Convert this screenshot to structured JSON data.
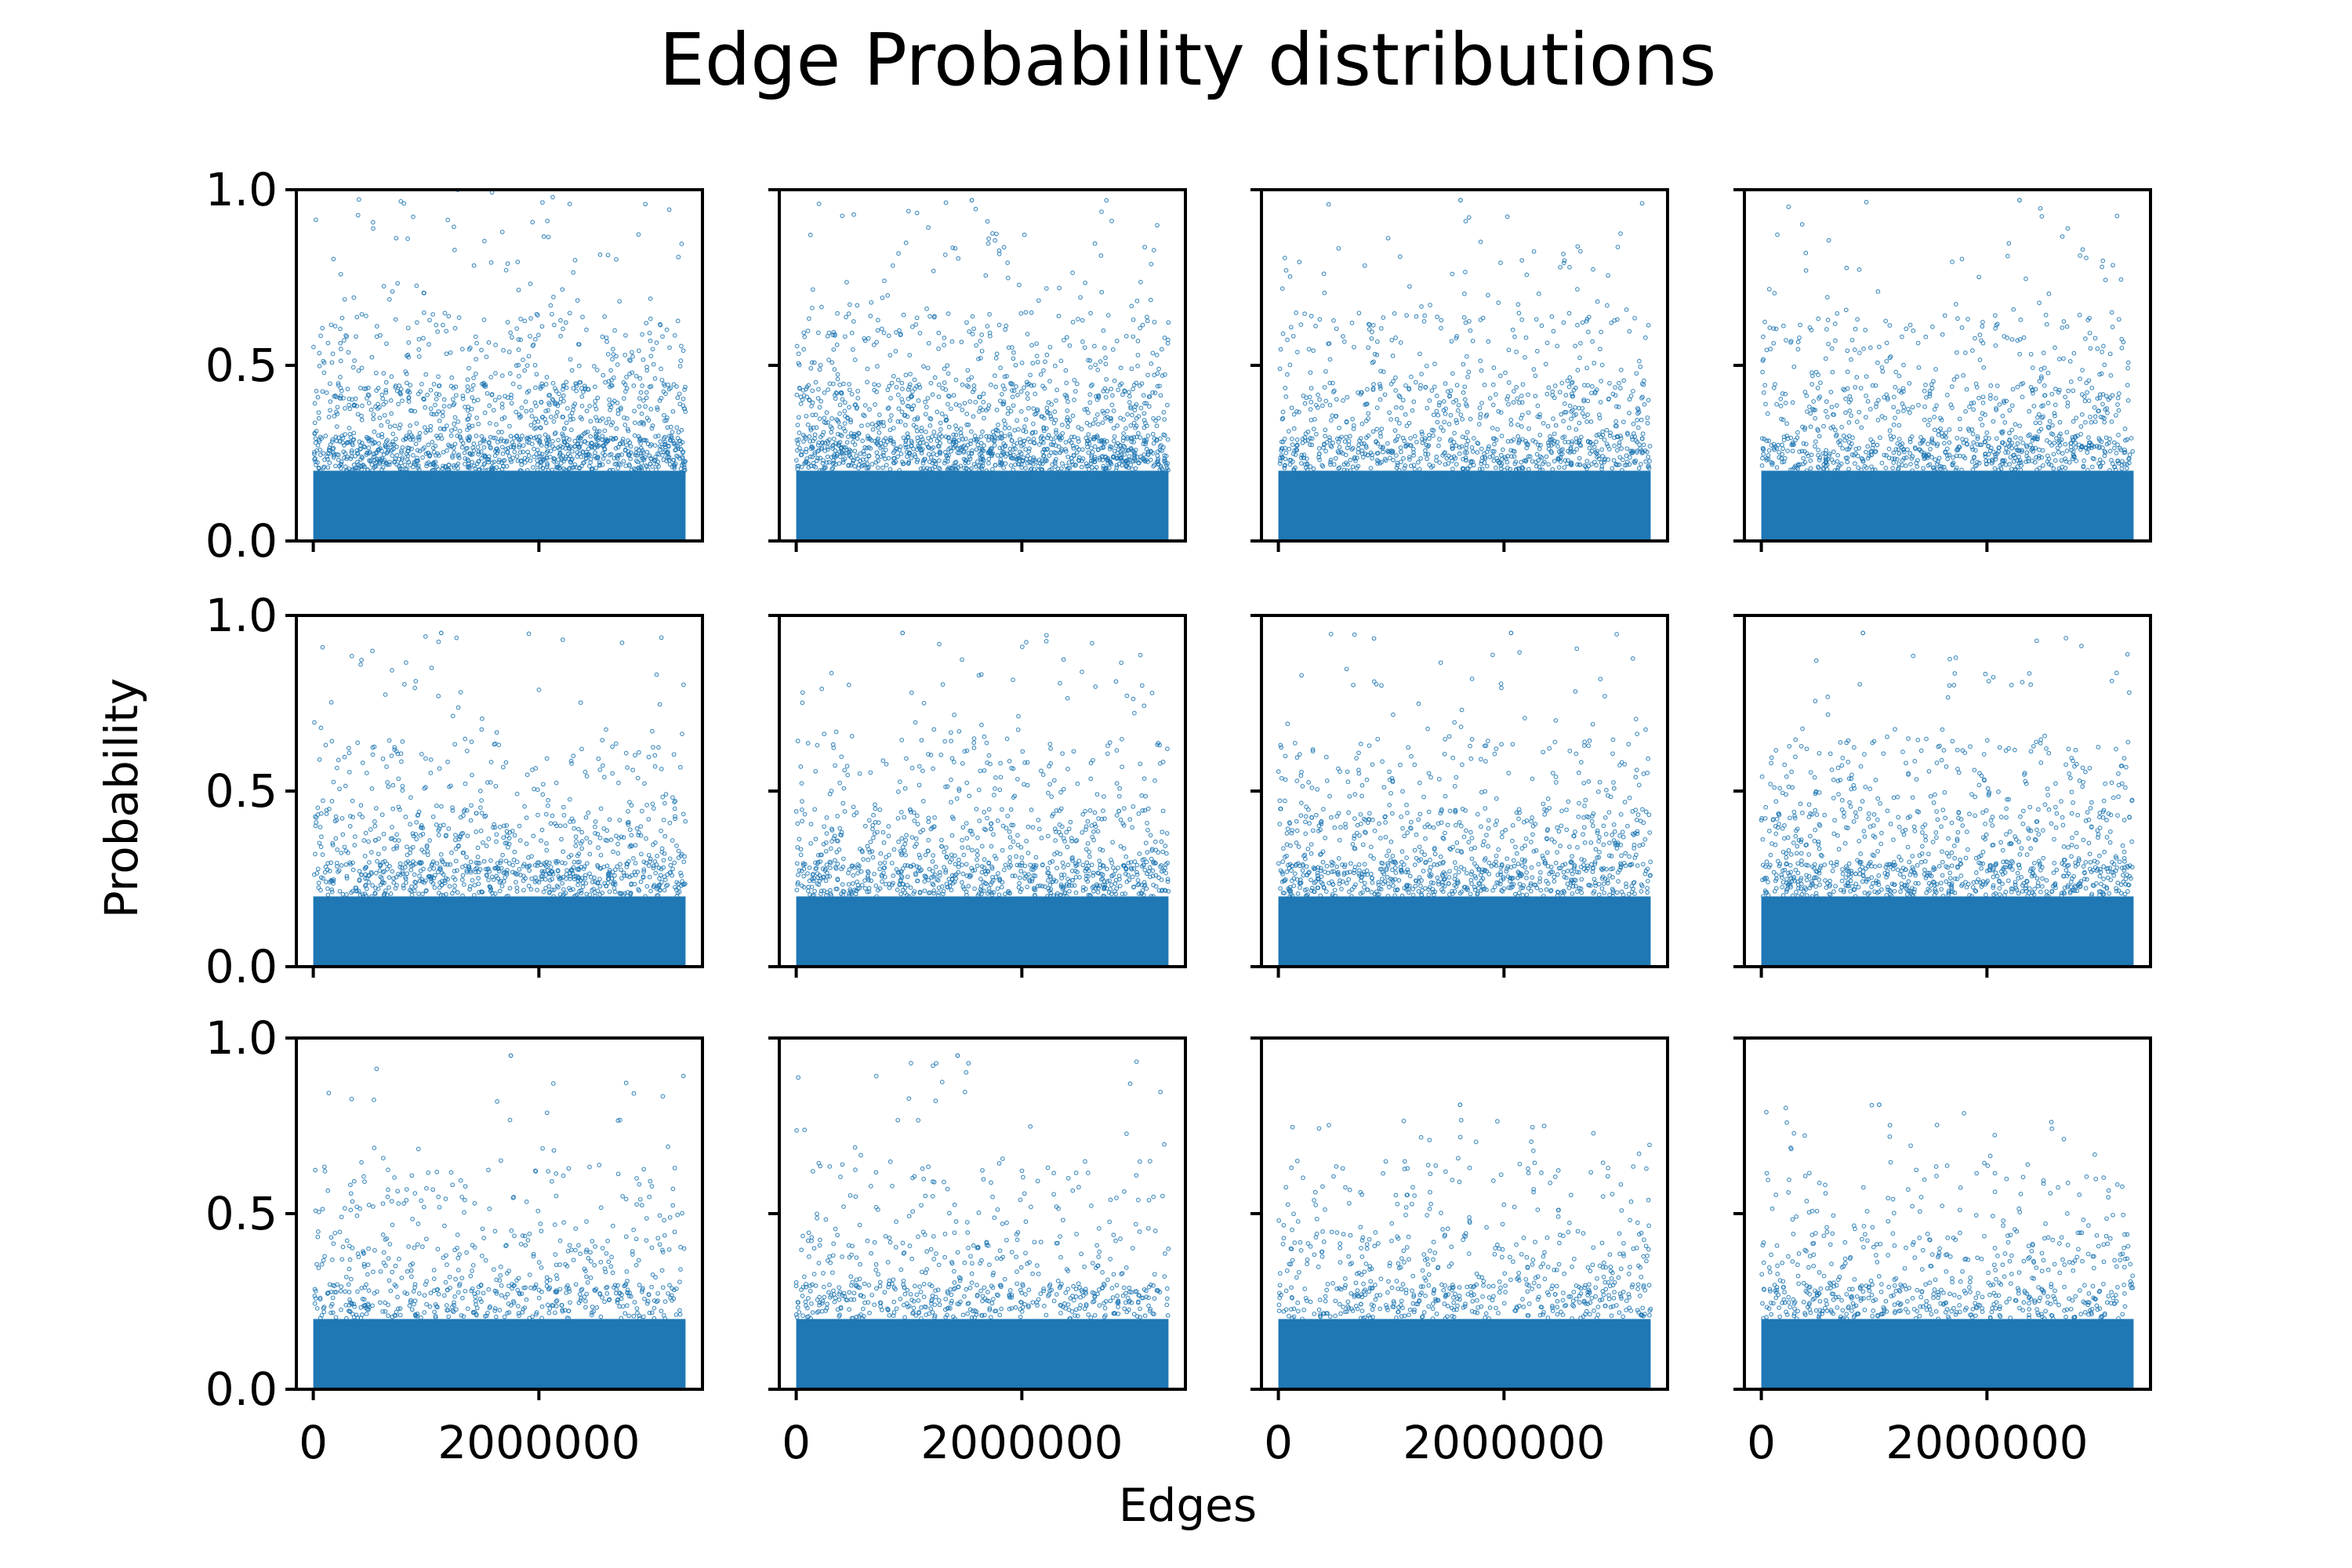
{
  "figure": {
    "title": "Edge Probability distributions",
    "xlabel": "Edges",
    "ylabel": "Probability"
  },
  "chart_data": {
    "type": "scatter",
    "grid": false,
    "layout": {
      "rows": 3,
      "cols": 4,
      "sharex": true,
      "sharey": true
    },
    "xlim": [
      -150000,
      3450000
    ],
    "ylim": [
      0.0,
      1.0
    ],
    "xticks": [
      0,
      2000000
    ],
    "xtick_labels": [
      "0",
      "2000000"
    ],
    "yticks": [
      0.0,
      0.5,
      1.0
    ],
    "ytick_labels": [
      "0.0",
      "0.5",
      "1.0"
    ],
    "n_edges": 3300000,
    "marker": {
      "style": "hollow-circle",
      "color": "#1f77b4"
    },
    "distribution": {
      "dense_band_max": 0.2,
      "scattered_range": [
        0.2,
        1.0
      ]
    },
    "panels": [
      {
        "row": 1,
        "col": 1,
        "max_probability": 1.0,
        "upper_spread": "heavy"
      },
      {
        "row": 1,
        "col": 2,
        "max_probability": 0.97,
        "upper_spread": "heavy"
      },
      {
        "row": 1,
        "col": 3,
        "max_probability": 0.97,
        "upper_spread": "moderate"
      },
      {
        "row": 1,
        "col": 4,
        "max_probability": 0.97,
        "upper_spread": "moderate"
      },
      {
        "row": 2,
        "col": 1,
        "max_probability": 0.95,
        "upper_spread": "moderate"
      },
      {
        "row": 2,
        "col": 2,
        "max_probability": 0.95,
        "upper_spread": "moderate"
      },
      {
        "row": 2,
        "col": 3,
        "max_probability": 0.95,
        "upper_spread": "moderate"
      },
      {
        "row": 2,
        "col": 4,
        "max_probability": 0.95,
        "upper_spread": "moderate"
      },
      {
        "row": 3,
        "col": 1,
        "max_probability": 0.95,
        "upper_spread": "light"
      },
      {
        "row": 3,
        "col": 2,
        "max_probability": 0.95,
        "upper_spread": "light"
      },
      {
        "row": 3,
        "col": 3,
        "max_probability": 0.81,
        "upper_spread": "light"
      },
      {
        "row": 3,
        "col": 4,
        "max_probability": 0.81,
        "upper_spread": "light"
      }
    ]
  }
}
